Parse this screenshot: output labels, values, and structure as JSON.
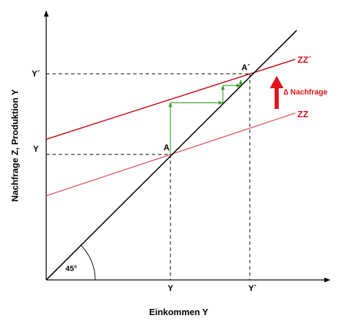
{
  "diagram": {
    "y_axis_label": "Nachfrage Z, Produktion Y",
    "x_axis_label": "Einkommen Y",
    "angle_label": "45°",
    "point_a": "A",
    "point_a_prime": "A´",
    "tick_y": "Y",
    "tick_y_prime": "Y´",
    "curve_zz": "ZZ",
    "curve_zz_prime": "ZZ´",
    "shift_label": "∆ Nachfrage",
    "colors": {
      "axis": "#000000",
      "zz_prime": "#c8101e",
      "zz": "#e04a5a",
      "steps": "#3aa22a",
      "shift_arrow": "#e3141c"
    }
  }
}
